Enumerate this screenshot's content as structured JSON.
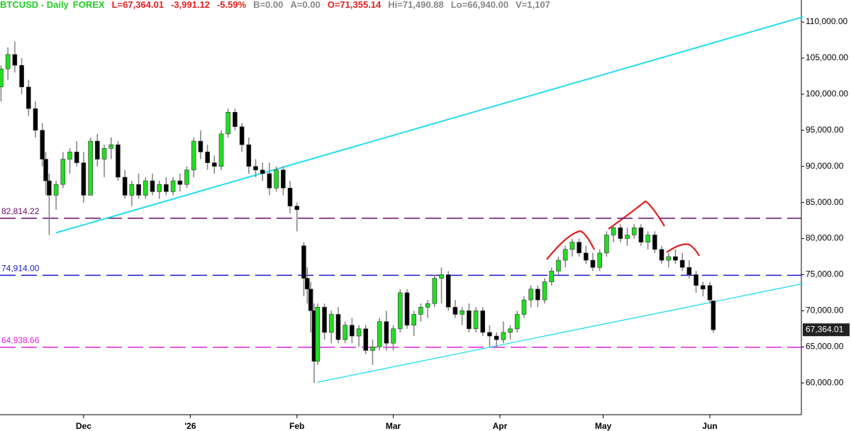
{
  "chart_data": {
    "type": "candlestick",
    "header": [
      {
        "text": "BTCUSD - Daily",
        "color": "#22cc22"
      },
      {
        "text": "FOREX",
        "color": "#22cc22"
      },
      {
        "text": "L=67,364.01",
        "color": "#e02020"
      },
      {
        "text": "-3,991.12",
        "color": "#e02020"
      },
      {
        "text": "-5.59%",
        "color": "#e02020"
      },
      {
        "text": "B=0.00",
        "color": "#888888"
      },
      {
        "text": "A=0.00",
        "color": "#888888"
      },
      {
        "text": "O=71,355.14",
        "color": "#e02020"
      },
      {
        "text": "Hi=71,490.88",
        "color": "#888888"
      },
      {
        "text": "Lo=66,940.00",
        "color": "#888888"
      },
      {
        "text": "V=1,107",
        "color": "#888888"
      }
    ],
    "up_color": "#22dd22",
    "down_color": "#000000",
    "wick_color": "#808080",
    "x": [
      0,
      2,
      4,
      6,
      8,
      10,
      12,
      13,
      14,
      16,
      18,
      20,
      22,
      24,
      26,
      28,
      30,
      32,
      34,
      36,
      38,
      40,
      42,
      44,
      46,
      48,
      50,
      52,
      54,
      56,
      58,
      60,
      62,
      64,
      66,
      68,
      70,
      72,
      74,
      76,
      78,
      80,
      82,
      84,
      86,
      88,
      89,
      90,
      91,
      92,
      94,
      96,
      98,
      100,
      102,
      104,
      106,
      108,
      110,
      112,
      114,
      116,
      118,
      120,
      122,
      124,
      126,
      128,
      130,
      132,
      134,
      136,
      138,
      140,
      142,
      144,
      146,
      148,
      150,
      152,
      154,
      156,
      158,
      160,
      162,
      164,
      166,
      168,
      170,
      172,
      174,
      176,
      178,
      180,
      182,
      184,
      186,
      188,
      190,
      192,
      194,
      196,
      198,
      200,
      202,
      204,
      206,
      207
    ],
    "open": [
      101000,
      103500,
      105500,
      104000,
      101000,
      98000,
      95000,
      91000,
      88000,
      86000,
      87500,
      91000,
      92000,
      90500,
      86000,
      93500,
      91000,
      92500,
      93000,
      88500,
      86000,
      87500,
      86000,
      88000,
      86500,
      87500,
      86500,
      88000,
      87500,
      89500,
      93500,
      92000,
      90500,
      90000,
      94500,
      97500,
      95500,
      93000,
      90000,
      89500,
      89000,
      87000,
      89500,
      87000,
      84500,
      79000,
      74500,
      73000,
      70000,
      63000,
      70500,
      67000,
      69500,
      66000,
      68000,
      66500,
      67500,
      64500,
      65000,
      68500,
      65500,
      67500,
      72500,
      68000,
      69500,
      70500,
      71000,
      74500,
      75000,
      70500,
      69500,
      70000,
      67500,
      70000,
      67000,
      66500,
      66000,
      67000,
      67500,
      69500,
      71500,
      73000,
      71500,
      74000,
      75500,
      77000,
      78500,
      79500,
      78000,
      77000,
      76000,
      78000,
      80500,
      81500,
      80000,
      80500,
      81500,
      79500,
      80500,
      78500,
      77000,
      77500,
      77000,
      76000,
      75000,
      73500,
      73500,
      71355.14
    ],
    "high": [
      104000,
      106500,
      107300,
      105000,
      102000,
      99000,
      96000,
      92000,
      89000,
      88000,
      92000,
      92500,
      93500,
      92000,
      94000,
      94500,
      93000,
      94000,
      93500,
      89500,
      88000,
      89000,
      88500,
      89000,
      88000,
      88500,
      88500,
      89000,
      90000,
      94000,
      95000,
      93000,
      91500,
      95000,
      98000,
      98000,
      96000,
      94000,
      91000,
      90500,
      90500,
      90000,
      90000,
      88000,
      85000,
      79500,
      76000,
      74000,
      71000,
      71000,
      71000,
      70000,
      70500,
      68500,
      69000,
      68000,
      68000,
      66000,
      69000,
      70000,
      68000,
      73000,
      73000,
      70000,
      71000,
      71500,
      75000,
      76000,
      75500,
      71500,
      70500,
      71000,
      70500,
      70500,
      68000,
      67000,
      68500,
      68000,
      70000,
      72000,
      73500,
      73500,
      74500,
      76000,
      77500,
      79000,
      80000,
      80000,
      79000,
      78000,
      78500,
      81000,
      82000,
      82000,
      81500,
      82000,
      82000,
      81000,
      81000,
      79000,
      78000,
      78500,
      78000,
      77000,
      75500,
      74000,
      74000,
      71490.88
    ],
    "low": [
      99000,
      102000,
      103000,
      100000,
      97000,
      94000,
      90000,
      86000,
      80500,
      84000,
      87000,
      89000,
      90000,
      85000,
      86000,
      90000,
      88500,
      91000,
      88000,
      85500,
      84500,
      85500,
      85500,
      86000,
      85500,
      86000,
      86000,
      86500,
      87000,
      88500,
      91000,
      89500,
      89000,
      89500,
      94000,
      95000,
      92000,
      89000,
      88500,
      88000,
      86000,
      86500,
      86000,
      83500,
      81000,
      72000,
      71000,
      67000,
      60000,
      62500,
      66000,
      65500,
      65500,
      65500,
      65500,
      65000,
      64000,
      62500,
      64500,
      64500,
      64500,
      67000,
      67500,
      66500,
      68500,
      69000,
      70500,
      71000,
      70000,
      69000,
      68000,
      67000,
      67000,
      66500,
      65000,
      65000,
      65500,
      66000,
      67000,
      69000,
      70500,
      70500,
      71000,
      73500,
      75000,
      76000,
      77500,
      77500,
      76500,
      75500,
      75500,
      77500,
      79500,
      79500,
      79000,
      80000,
      79000,
      78500,
      78000,
      76500,
      76000,
      76500,
      75500,
      74500,
      72500,
      72000,
      71000,
      66940
    ],
    "close": [
      103500,
      105500,
      104000,
      101000,
      98000,
      95000,
      91000,
      88000,
      86000,
      87500,
      91000,
      92000,
      90500,
      86000,
      93500,
      91000,
      92500,
      93000,
      88500,
      86000,
      87500,
      86000,
      88000,
      86500,
      87500,
      86500,
      88000,
      87500,
      89500,
      93500,
      92000,
      90500,
      90000,
      94500,
      97500,
      95500,
      93000,
      90000,
      89500,
      89000,
      87000,
      89500,
      87000,
      84500,
      84000,
      74500,
      73000,
      70000,
      63000,
      70500,
      67000,
      69500,
      66000,
      68000,
      66500,
      67500,
      64500,
      65000,
      68500,
      65500,
      67500,
      72500,
      68000,
      69500,
      70500,
      71000,
      74500,
      75000,
      70500,
      69500,
      70000,
      67500,
      70000,
      67000,
      66500,
      66000,
      67000,
      67500,
      69500,
      71500,
      73000,
      71500,
      74000,
      75500,
      77000,
      78500,
      79500,
      78000,
      77000,
      76000,
      78000,
      80500,
      81500,
      80000,
      80500,
      81500,
      79500,
      80500,
      78500,
      77000,
      77500,
      77000,
      76000,
      75000,
      73500,
      73000,
      71500,
      67364.01
    ],
    "xlim": [
      -0.3,
      232.6
    ],
    "ylim": [
      55600,
      113050
    ],
    "xticks": [
      {
        "value": 24,
        "label": "Dec"
      },
      {
        "value": 55,
        "label": "'26"
      },
      {
        "value": 86,
        "label": "Feb"
      },
      {
        "value": 114,
        "label": "Mar"
      },
      {
        "value": 145,
        "label": "Apr"
      },
      {
        "value": 175,
        "label": "May"
      },
      {
        "value": 206,
        "label": "Jun"
      }
    ],
    "yticks": [
      {
        "value": 60000,
        "label": "60,000.00"
      },
      {
        "value": 65000,
        "label": "65,000.00"
      },
      {
        "value": 70000,
        "label": "70,000.00"
      },
      {
        "value": 75000,
        "label": "75,000.00"
      },
      {
        "value": 80000,
        "label": "80,000.00"
      },
      {
        "value": 85000,
        "label": "85,000.00"
      },
      {
        "value": 90000,
        "label": "90,000.00"
      },
      {
        "value": 95000,
        "label": "95,000.00"
      },
      {
        "value": 100000,
        "label": "100,000.00"
      },
      {
        "value": 105000,
        "label": "105,000.00"
      },
      {
        "value": 110000,
        "label": "110,000.00"
      }
    ],
    "levels": [
      {
        "value": 82814.22,
        "label": "82,814.22",
        "color": "#6a0a6a"
      },
      {
        "value": 74914,
        "label": "74,914.00",
        "color": "#1a1ad0"
      },
      {
        "value": 64938.66,
        "label": "64,938.66",
        "color": "#e020e0"
      }
    ],
    "trendlines": [
      {
        "x": [
          16,
          233
        ],
        "y": [
          80800,
          110700
        ],
        "color": "#22ddee",
        "width": 2
      },
      {
        "x": [
          92,
          233
        ],
        "y": [
          60100,
          73750
        ],
        "color": "#22ddee",
        "width": 1.3
      }
    ],
    "last_price": {
      "value": 67364.01,
      "label": "67,364.01"
    }
  }
}
